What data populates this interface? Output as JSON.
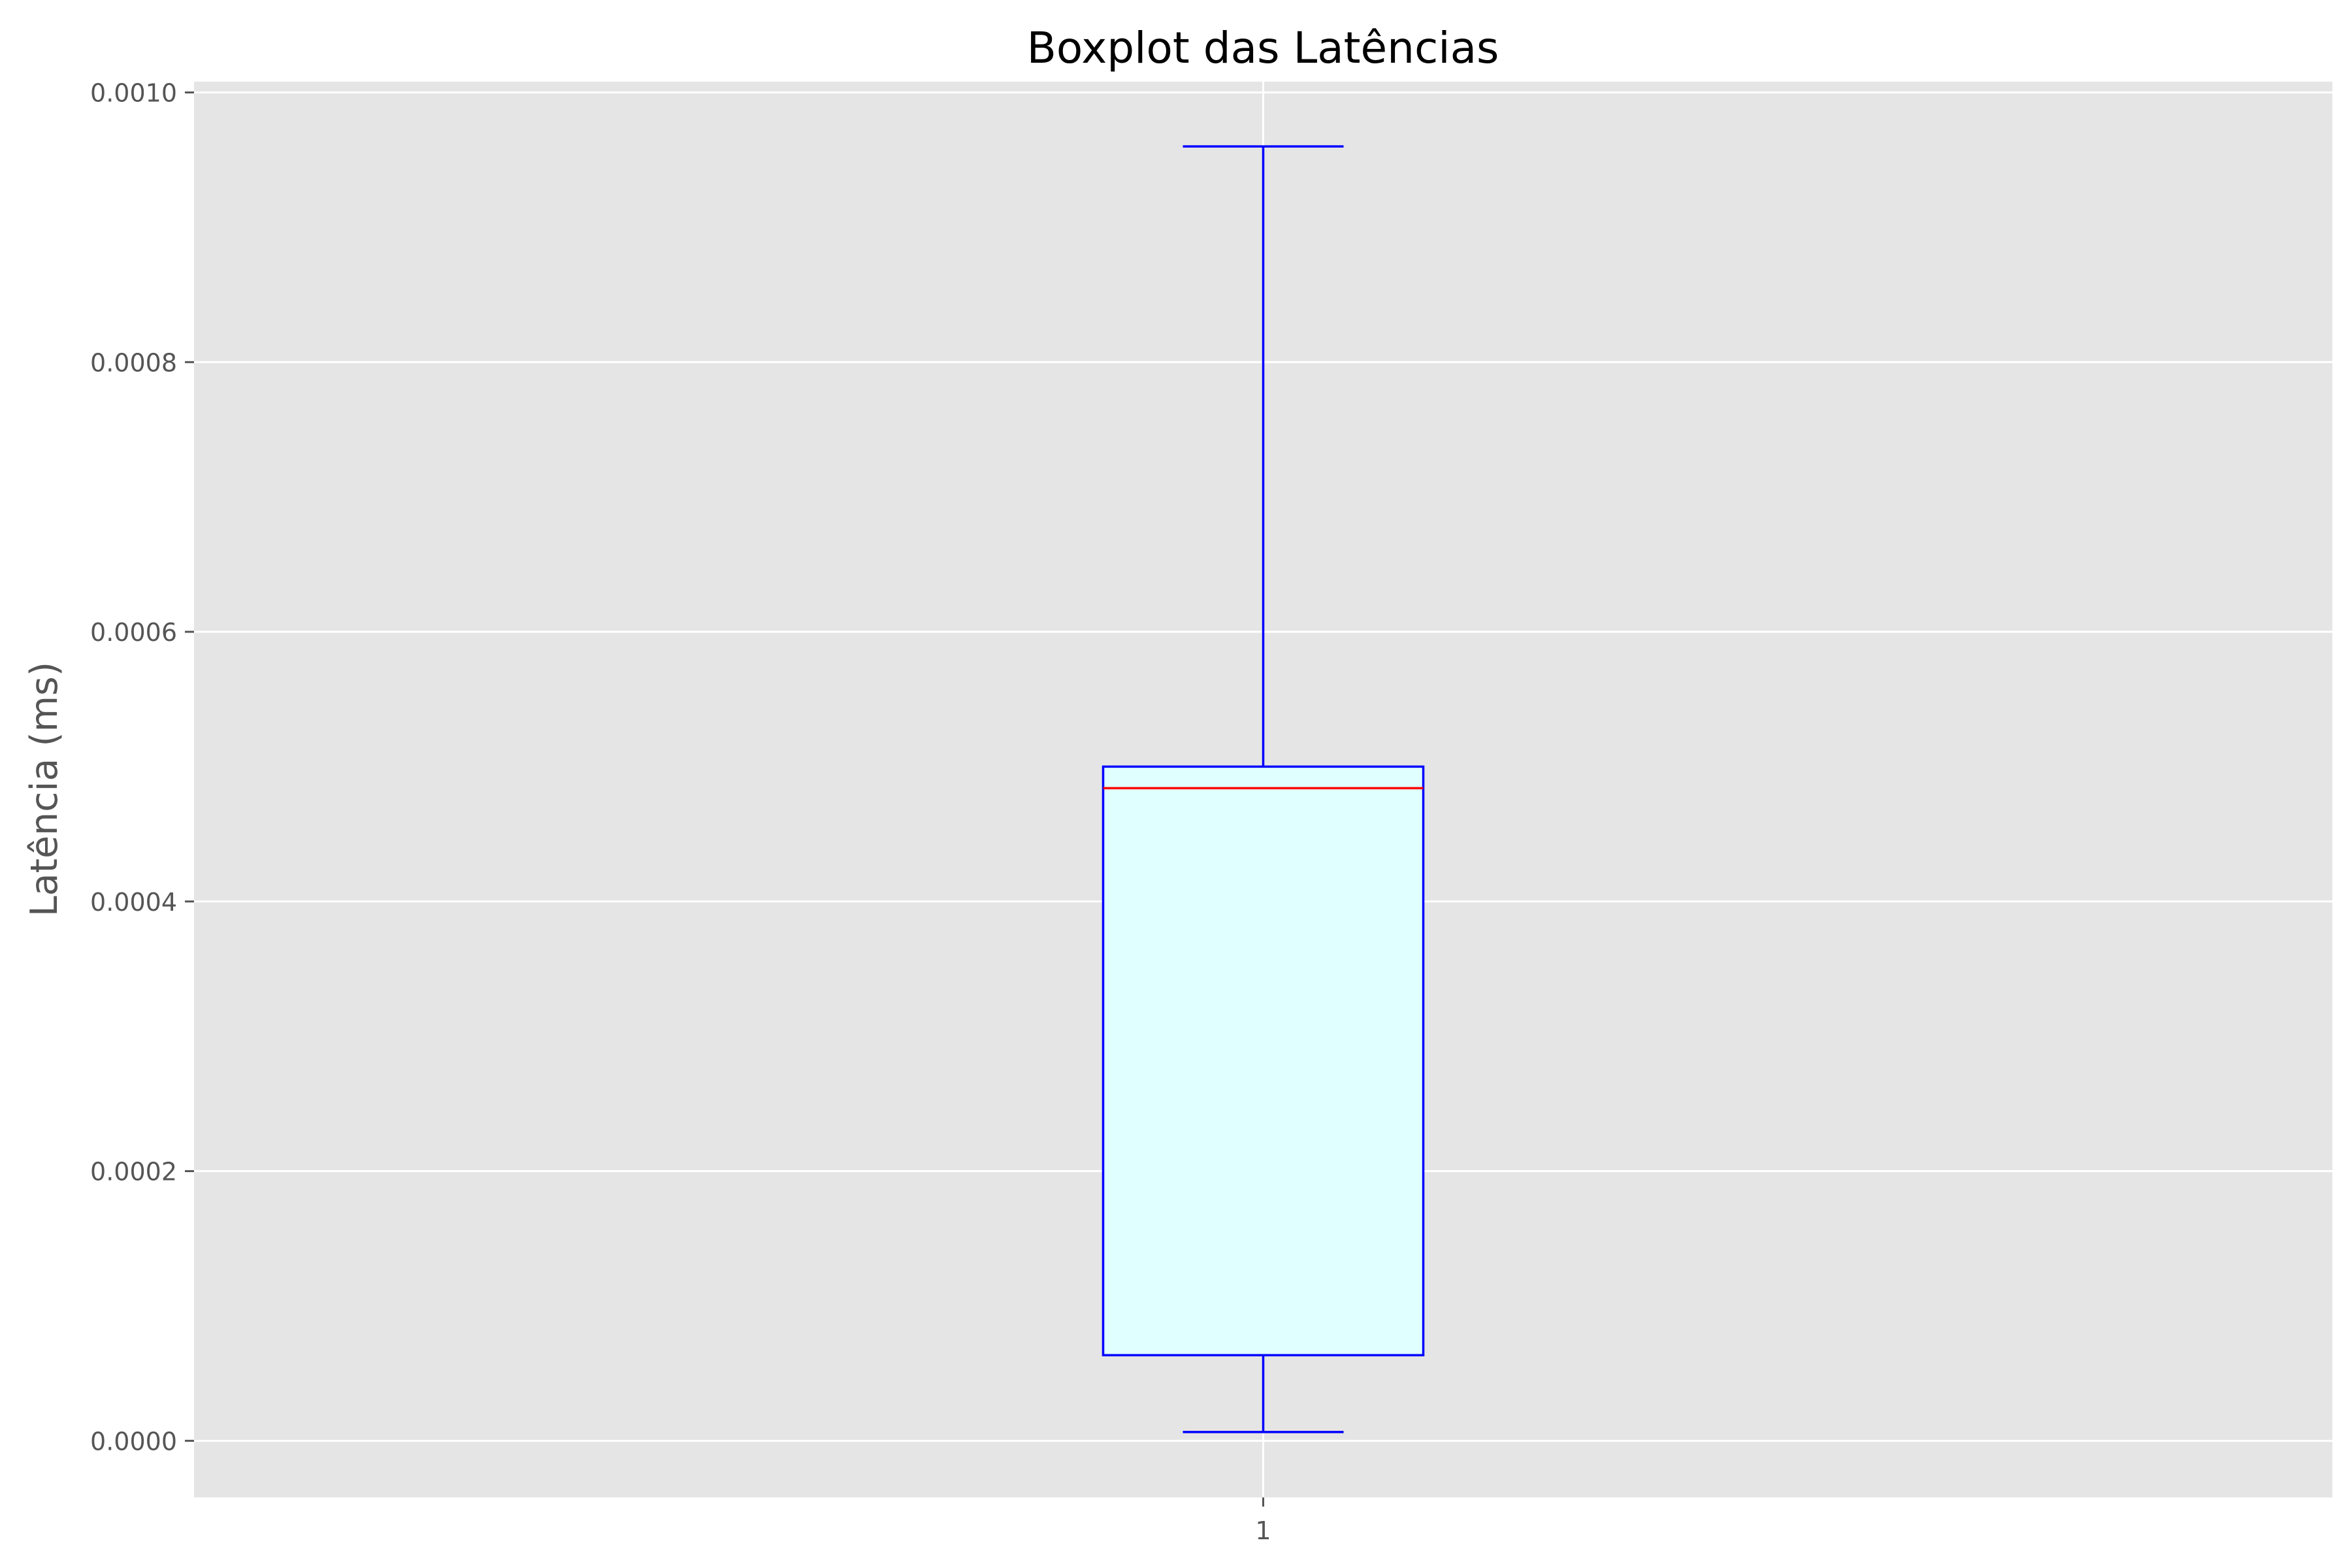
{
  "chart_data": {
    "type": "box",
    "title": "Boxplot das Latências",
    "xlabel": "",
    "ylabel": "Latência (ms)",
    "categories": [
      "1"
    ],
    "boxes": [
      {
        "category": "1",
        "whisker_low": 6.5e-06,
        "q1": 6.35e-05,
        "median": 0.000484,
        "q3": 0.0005,
        "whisker_high": 0.00096
      }
    ],
    "ylim": [
      -4.2e-05,
      0.001008
    ],
    "yticks": [
      0,
      0.0002,
      0.0004,
      0.0006,
      0.0008,
      0.001
    ],
    "ytick_labels": [
      "0.0000",
      "0.0002",
      "0.0004",
      "0.0006",
      "0.0008",
      "0.0010"
    ],
    "grid": true,
    "colors": {
      "background": "#E5E5E5",
      "grid": "#FFFFFF",
      "box_edge": "#0000FF",
      "box_fill": "#E0FFFF",
      "median": "#FF0000",
      "tick_text": "#555555",
      "title_text": "#000000",
      "label_text": "#555555"
    }
  }
}
